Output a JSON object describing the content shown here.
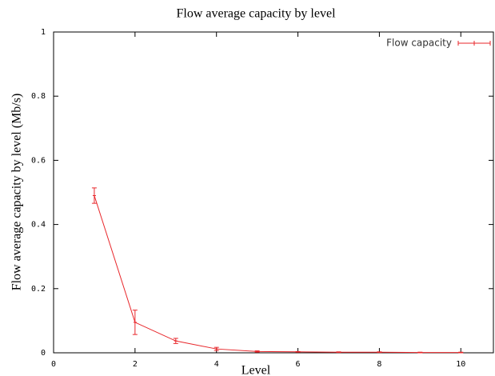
{
  "chart_data": {
    "type": "line",
    "title": "Flow average capacity by level",
    "xlabel": "Level",
    "ylabel": "Flow average capacity by level  (Mb/s)",
    "x": [
      1,
      2,
      3,
      4,
      5,
      6,
      7,
      8,
      9,
      10
    ],
    "series": [
      {
        "name": "Flow capacity",
        "color": "#e8262a",
        "values": [
          0.49,
          0.095,
          0.037,
          0.012,
          0.004,
          0.003,
          0.002,
          0.002,
          0.001,
          0.001
        ],
        "errors": [
          0.024,
          0.038,
          0.008,
          0.005,
          0.002,
          0.001,
          0.001,
          0.001,
          0.001,
          0.001
        ]
      }
    ],
    "xlim": [
      0,
      10.8
    ],
    "xticks": [
      0,
      2,
      4,
      6,
      8,
      10
    ],
    "ylim": [
      0,
      1
    ],
    "yticks": [
      0,
      0.2,
      0.4,
      0.6,
      0.8,
      1
    ],
    "grid": false,
    "legend": "top right"
  }
}
